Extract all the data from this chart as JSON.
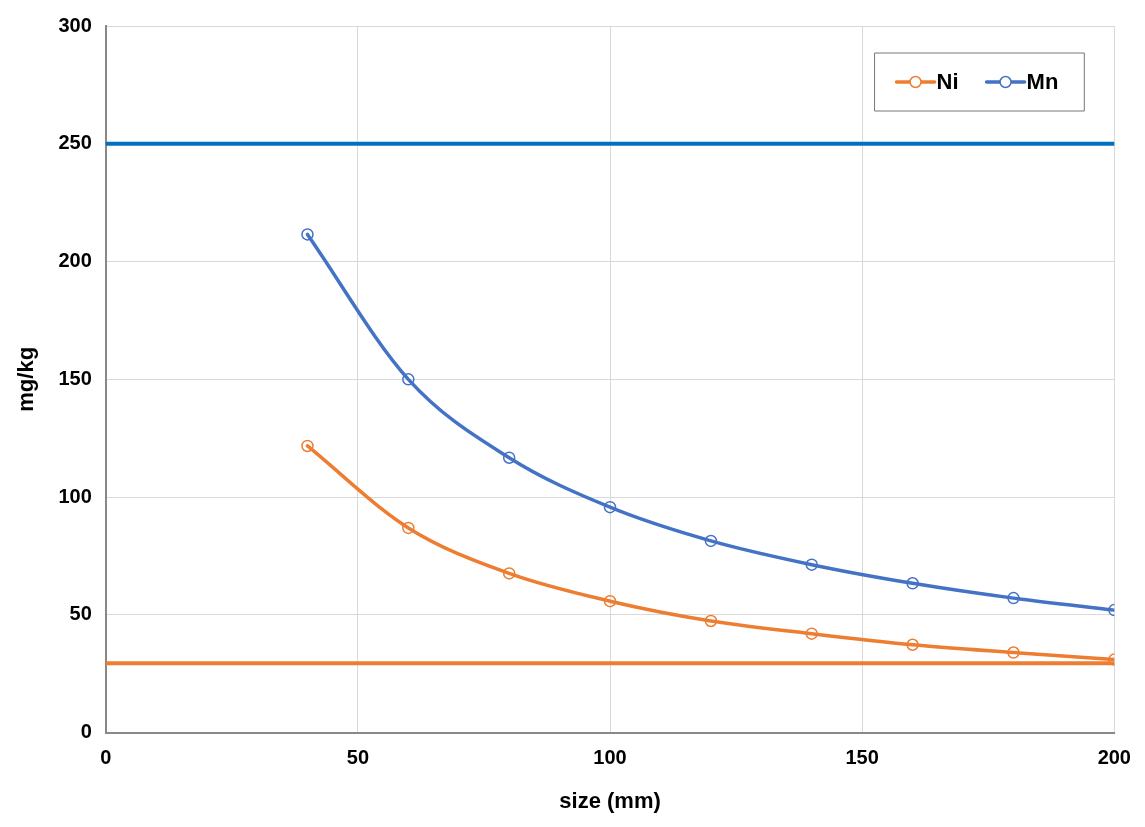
{
  "chart_data": {
    "type": "line",
    "xlabel": "size (mm)",
    "ylabel": "mg/kg",
    "x": [
      40,
      60,
      80,
      100,
      120,
      140,
      160,
      180,
      200
    ],
    "series": [
      {
        "name": "Ni",
        "color": "#ed7d31",
        "values": [
          121.7,
          86.9,
          67.6,
          55.8,
          47.4,
          42,
          37.3,
          34,
          31
        ]
      },
      {
        "name": "Mn",
        "color": "#4472c4",
        "values": [
          211.5,
          150,
          116.7,
          95.7,
          81.4,
          71.3,
          63.4,
          57.1,
          52
        ]
      }
    ],
    "ref_lines": [
      {
        "axis": "y",
        "value": 250,
        "color": "#0070c0",
        "line_style": "solid"
      },
      {
        "axis": "y",
        "value": 29.4,
        "color": "#ed7d31",
        "line_style": "solid"
      }
    ],
    "xlim": [
      0,
      200
    ],
    "xticks": [
      0,
      50,
      100,
      150,
      200
    ],
    "ylim": [
      0,
      300
    ],
    "yticks": [
      0,
      50,
      100,
      150,
      200,
      250,
      300
    ],
    "grid": true,
    "legend": "top right",
    "marker": "circle",
    "line_style": "solid"
  }
}
